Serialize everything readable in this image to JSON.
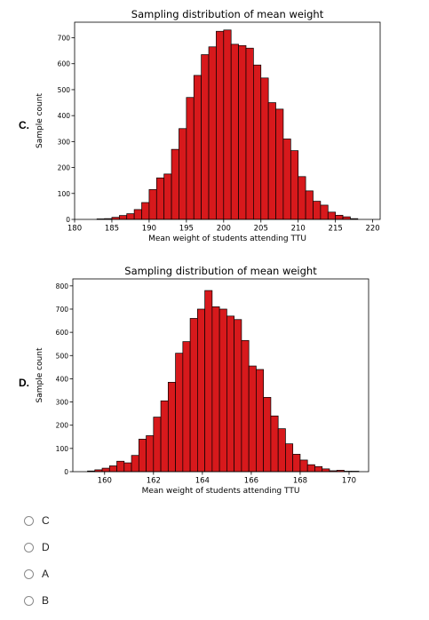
{
  "panels": [
    {
      "letter": "C."
    },
    {
      "letter": "D."
    }
  ],
  "options": [
    "C",
    "D",
    "A",
    "B"
  ],
  "colors": {
    "bar_fill": "#d7191c",
    "bar_edge": "#000000",
    "radio_border": "#8a8a8a"
  },
  "chart_data": [
    {
      "type": "bar",
      "title": "Sampling distribution of mean weight",
      "xlabel": "Mean weight of students attending TTU",
      "ylabel": "Sample count",
      "xlim": [
        180,
        221
      ],
      "ylim": [
        0,
        760
      ],
      "xticks": [
        180,
        185,
        190,
        195,
        200,
        205,
        210,
        215,
        220
      ],
      "yticks": [
        0,
        100,
        200,
        300,
        400,
        500,
        600,
        700
      ],
      "bin_start": 183,
      "bin_width": 1,
      "values": [
        2,
        3,
        8,
        15,
        22,
        38,
        65,
        115,
        160,
        175,
        270,
        350,
        470,
        555,
        635,
        665,
        725,
        730,
        675,
        670,
        660,
        595,
        545,
        450,
        425,
        310,
        265,
        165,
        110,
        70,
        55,
        28,
        16,
        10,
        3
      ],
      "grid": false
    },
    {
      "type": "bar",
      "title": "Sampling distribution of mean weight",
      "xlabel": "Mean weight of students attending TTU",
      "ylabel": "Sample count",
      "xlim": [
        158.7,
        170.8
      ],
      "ylim": [
        0,
        830
      ],
      "xticks": [
        160,
        162,
        164,
        166,
        168,
        170
      ],
      "yticks": [
        0,
        100,
        200,
        300,
        400,
        500,
        600,
        700,
        800
      ],
      "bin_start": 159.3,
      "bin_width": 0.3,
      "values": [
        3,
        8,
        15,
        25,
        45,
        38,
        70,
        140,
        155,
        235,
        305,
        385,
        510,
        560,
        660,
        700,
        780,
        710,
        700,
        670,
        655,
        565,
        455,
        440,
        320,
        240,
        185,
        120,
        75,
        50,
        30,
        22,
        12,
        4,
        6,
        2,
        2
      ],
      "grid": false
    }
  ]
}
